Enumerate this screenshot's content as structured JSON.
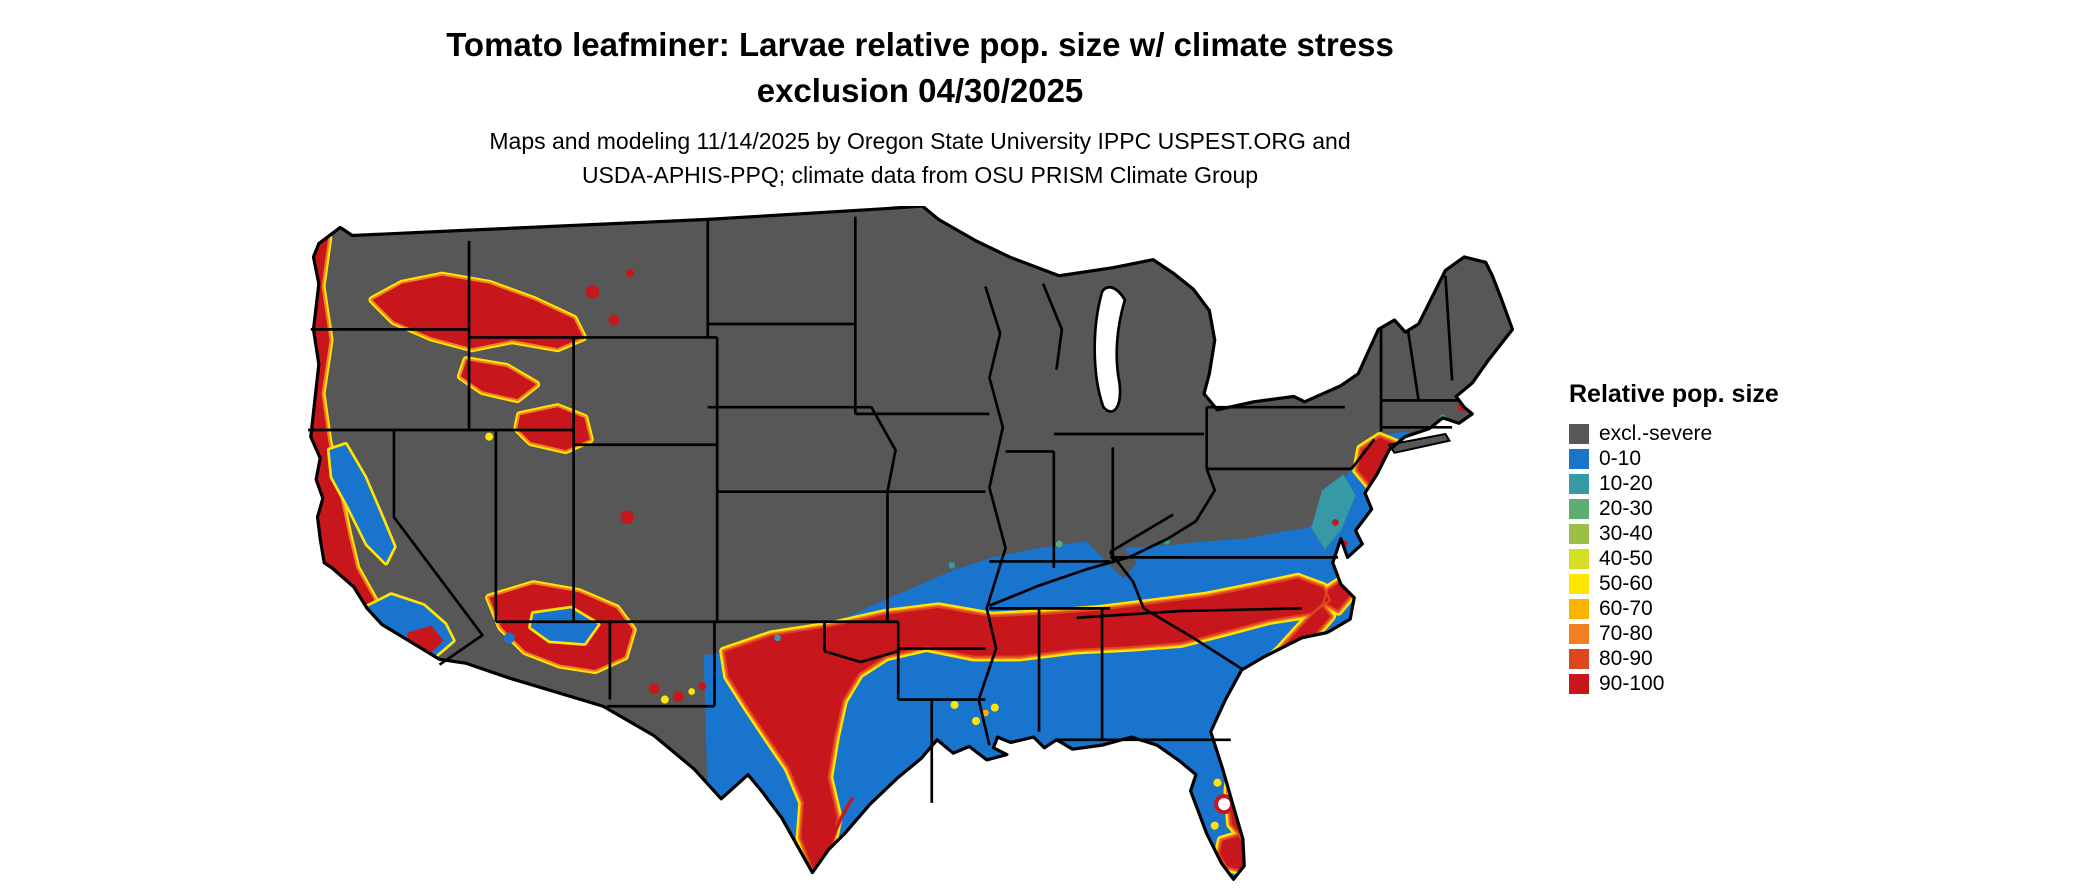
{
  "header": {
    "title_line1": "Tomato leafminer: Larvae relative pop. size w/ climate stress",
    "title_line2": "exclusion 04/30/2025",
    "subtitle_line1": "Maps and modeling 11/14/2025 by Oregon State University IPPC USPEST.ORG and",
    "subtitle_line2": "USDA-APHIS-PPQ; climate data from OSU PRISM Climate Group"
  },
  "legend": {
    "title": "Relative pop. size",
    "items": [
      {
        "label": "excl.-severe",
        "color_key": "excl"
      },
      {
        "label": "0-10",
        "color_key": "p0"
      },
      {
        "label": "10-20",
        "color_key": "p10"
      },
      {
        "label": "20-30",
        "color_key": "p20"
      },
      {
        "label": "30-40",
        "color_key": "p30"
      },
      {
        "label": "40-50",
        "color_key": "p40"
      },
      {
        "label": "50-60",
        "color_key": "p50"
      },
      {
        "label": "60-70",
        "color_key": "p60"
      },
      {
        "label": "70-80",
        "color_key": "p70"
      },
      {
        "label": "80-90",
        "color_key": "p80"
      },
      {
        "label": "90-100",
        "color_key": "p90"
      }
    ]
  },
  "map": {
    "region": "Contiguous United States",
    "palette": {
      "excl": "#575757",
      "p0": "#1874cd",
      "p10": "#3798a6",
      "p20": "#5fad73",
      "p30": "#9cbf46",
      "p40": "#d3de24",
      "p50": "#ffe500",
      "p60": "#fcb400",
      "p70": "#f57e20",
      "p80": "#dd4720",
      "p90": "#c8161d",
      "water": "#ffffff",
      "line": "#000000"
    }
  }
}
